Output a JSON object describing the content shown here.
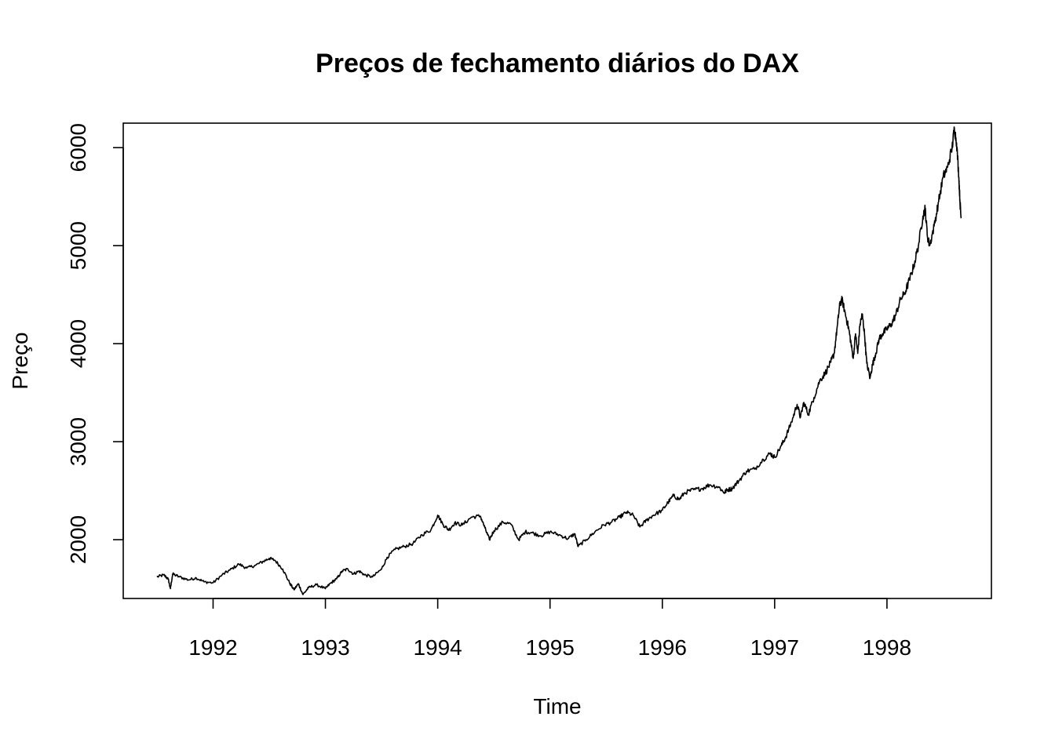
{
  "chart_data": {
    "type": "line",
    "title": "Preços de fechamento diários do DAX",
    "xlabel": "Time",
    "ylabel": "Preço",
    "xlim": [
      1991.2,
      1998.93
    ],
    "ylim": [
      1400,
      6250
    ],
    "x_ticks": [
      1992,
      1993,
      1994,
      1995,
      1996,
      1997,
      1998
    ],
    "x_tick_labels": [
      "1992",
      "1993",
      "1994",
      "1995",
      "1996",
      "1997",
      "1998"
    ],
    "y_ticks": [
      2000,
      3000,
      4000,
      5000,
      6000
    ],
    "y_tick_labels": [
      "2000",
      "3000",
      "4000",
      "5000",
      "6000"
    ],
    "grid": false,
    "legend": "none",
    "line_color": "#000000",
    "series": [
      {
        "x": [
          1991.5,
          1991.56,
          1991.6,
          1991.62,
          1991.64,
          1991.7,
          1991.78,
          1991.85,
          1991.92,
          1992.0,
          1992.08,
          1992.15,
          1992.23,
          1992.3,
          1992.38,
          1992.45,
          1992.5,
          1992.55,
          1992.62,
          1992.68,
          1992.72,
          1992.76,
          1992.8,
          1992.85,
          1992.92,
          1993.0,
          1993.05,
          1993.1,
          1993.15,
          1993.2,
          1993.25,
          1993.3,
          1993.35,
          1993.42,
          1993.5,
          1993.55,
          1993.62,
          1993.7,
          1993.78,
          1993.86,
          1993.94,
          1994.0,
          1994.05,
          1994.1,
          1994.15,
          1994.22,
          1994.3,
          1994.38,
          1994.42,
          1994.46,
          1994.5,
          1994.58,
          1994.65,
          1994.72,
          1994.78,
          1994.84,
          1994.92,
          1995.0,
          1995.08,
          1995.16,
          1995.22,
          1995.25,
          1995.32,
          1995.4,
          1995.48,
          1995.55,
          1995.62,
          1995.68,
          1995.74,
          1995.8,
          1995.86,
          1995.92,
          1996.0,
          1996.05,
          1996.1,
          1996.15,
          1996.2,
          1996.28,
          1996.35,
          1996.42,
          1996.5,
          1996.55,
          1996.58,
          1996.62,
          1996.68,
          1996.75,
          1996.82,
          1996.9,
          1996.96,
          1997.0,
          1997.06,
          1997.1,
          1997.15,
          1997.2,
          1997.23,
          1997.26,
          1997.3,
          1997.35,
          1997.4,
          1997.45,
          1997.5,
          1997.53,
          1997.56,
          1997.58,
          1997.6,
          1997.63,
          1997.66,
          1997.68,
          1997.7,
          1997.72,
          1997.74,
          1997.76,
          1997.78,
          1997.8,
          1997.82,
          1997.85,
          1997.87,
          1997.9,
          1997.93,
          1997.96,
          1998.0,
          1998.04,
          1998.08,
          1998.12,
          1998.16,
          1998.2,
          1998.24,
          1998.28,
          1998.32,
          1998.34,
          1998.36,
          1998.38,
          1998.42,
          1998.46,
          1998.5,
          1998.54,
          1998.58,
          1998.6,
          1998.62,
          1998.64,
          1998.65,
          1998.66
        ],
        "y": [
          1620,
          1640,
          1600,
          1500,
          1650,
          1620,
          1590,
          1610,
          1570,
          1560,
          1640,
          1690,
          1750,
          1710,
          1740,
          1780,
          1810,
          1790,
          1700,
          1560,
          1490,
          1550,
          1440,
          1510,
          1540,
          1500,
          1560,
          1600,
          1680,
          1700,
          1650,
          1680,
          1640,
          1620,
          1700,
          1820,
          1900,
          1930,
          1960,
          2050,
          2100,
          2250,
          2150,
          2100,
          2170,
          2150,
          2230,
          2240,
          2120,
          2000,
          2090,
          2180,
          2160,
          2000,
          2080,
          2070,
          2040,
          2080,
          2050,
          2010,
          2060,
          1930,
          2000,
          2080,
          2150,
          2180,
          2230,
          2280,
          2250,
          2130,
          2200,
          2250,
          2300,
          2380,
          2450,
          2410,
          2480,
          2510,
          2520,
          2560,
          2540,
          2480,
          2510,
          2520,
          2600,
          2700,
          2720,
          2820,
          2880,
          2840,
          2960,
          3050,
          3200,
          3380,
          3250,
          3400,
          3280,
          3450,
          3620,
          3700,
          3810,
          3900,
          4200,
          4400,
          4450,
          4300,
          4150,
          4000,
          3850,
          4100,
          3900,
          4200,
          4300,
          4100,
          3800,
          3650,
          3780,
          3900,
          4050,
          4100,
          4150,
          4200,
          4300,
          4450,
          4520,
          4650,
          4800,
          5000,
          5300,
          5380,
          5100,
          5000,
          5200,
          5450,
          5700,
          5800,
          6000,
          6200,
          6050,
          5700,
          5450,
          5280
        ]
      }
    ]
  }
}
